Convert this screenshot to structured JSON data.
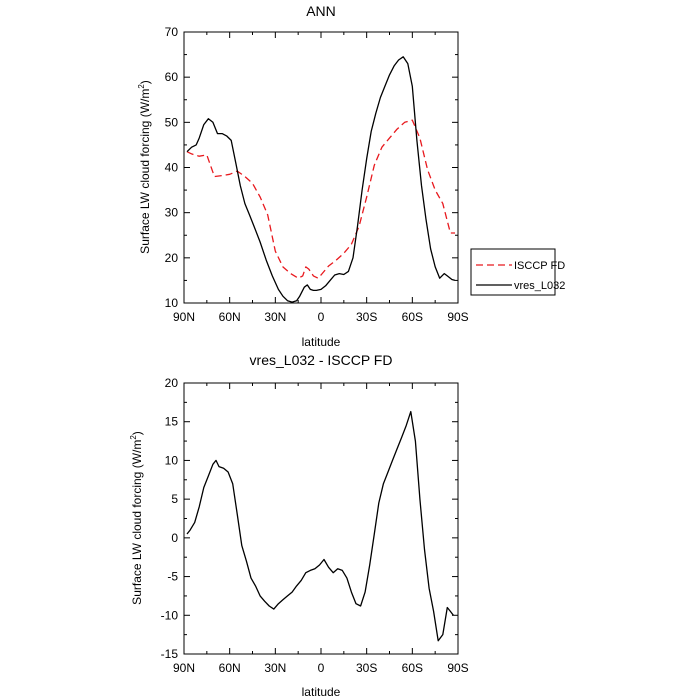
{
  "chart_data": [
    {
      "type": "line",
      "title": "ANN",
      "xlabel": "latitude",
      "ylabel": "Surface LW cloud forcing (W/m",
      "ylabel_sup": "2",
      "ylabel_end": ")",
      "xlim": [
        90,
        -90
      ],
      "ylim": [
        10,
        70
      ],
      "x_ticks": [
        90,
        60,
        30,
        0,
        -30,
        -60,
        -90
      ],
      "x_tick_labels": [
        "90N",
        "60N",
        "30N",
        "0",
        "30S",
        "60S",
        "90S"
      ],
      "y_ticks": [
        10,
        20,
        30,
        40,
        50,
        60,
        70
      ],
      "y_tick_labels": [
        "10",
        "20",
        "30",
        "40",
        "50",
        "60",
        "70"
      ],
      "legend_position": "right",
      "series": [
        {
          "name": "ISCCP FD",
          "color": "#e8191e",
          "dash": "dashed",
          "x": [
            88,
            85,
            80,
            75,
            70,
            65,
            60,
            55,
            50,
            45,
            40,
            35,
            30,
            25,
            20,
            15,
            12,
            10,
            8,
            5,
            2,
            0,
            -5,
            -10,
            -15,
            -20,
            -25,
            -30,
            -35,
            -40,
            -45,
            -50,
            -55,
            -60,
            -65,
            -70,
            -75,
            -80,
            -85,
            -88
          ],
          "y": [
            43.5,
            43.0,
            42.5,
            42.8,
            38.0,
            38.2,
            38.5,
            39.2,
            38.0,
            36.5,
            33.5,
            29.5,
            21.5,
            18.0,
            16.5,
            15.5,
            16.0,
            18.0,
            17.5,
            16.0,
            15.5,
            16.2,
            18.2,
            19.5,
            21.0,
            23.0,
            27.0,
            33.5,
            40.5,
            44.5,
            46.5,
            48.5,
            50.0,
            50.5,
            46.5,
            39.5,
            35.0,
            32.0,
            25.5,
            25.5
          ]
        },
        {
          "name": "vres_L032",
          "color": "#000000",
          "dash": "solid",
          "x": [
            88,
            85,
            82,
            80,
            77,
            74,
            71,
            68,
            65,
            62,
            59,
            56,
            53,
            50,
            47,
            44,
            40,
            36,
            32,
            28,
            25,
            22,
            19,
            16,
            14,
            11,
            9,
            7,
            5,
            3,
            0,
            -3,
            -6,
            -9,
            -12,
            -15,
            -18,
            -21,
            -24,
            -27,
            -30,
            -33,
            -36,
            -39,
            -42,
            -45,
            -48,
            -51,
            -54,
            -57,
            -60,
            -63,
            -66,
            -69,
            -72,
            -75,
            -78,
            -81,
            -83,
            -86,
            -88
          ],
          "y": [
            43.5,
            44.5,
            45.0,
            46.5,
            49.5,
            50.8,
            50.0,
            47.5,
            47.5,
            47.0,
            46.0,
            41.0,
            36.0,
            32.0,
            29.5,
            27.0,
            23.5,
            19.5,
            16.0,
            13.0,
            11.5,
            10.5,
            10.2,
            10.5,
            11.5,
            13.5,
            14.0,
            13.0,
            12.8,
            12.8,
            13.0,
            13.8,
            15.0,
            16.2,
            16.5,
            16.3,
            17.0,
            20.0,
            27.0,
            35.0,
            42.0,
            48.0,
            52.0,
            55.5,
            58.0,
            60.5,
            62.5,
            63.8,
            64.5,
            63.0,
            58.0,
            46.0,
            36.0,
            28.5,
            22.0,
            18.0,
            15.5,
            16.5,
            16.0,
            15.2,
            15.0
          ]
        }
      ]
    },
    {
      "type": "line",
      "title": "vres_L032 - ISCCP FD",
      "xlabel": "latitude",
      "ylabel": "Surface LW cloud forcing (W/m",
      "ylabel_sup": "2",
      "ylabel_end": ")",
      "xlim": [
        90,
        -90
      ],
      "ylim": [
        -15,
        20
      ],
      "x_ticks": [
        90,
        60,
        30,
        0,
        -30,
        -60,
        -90
      ],
      "x_tick_labels": [
        "90N",
        "60N",
        "30N",
        "0",
        "30S",
        "60S",
        "90S"
      ],
      "y_ticks": [
        -15,
        -10,
        -5,
        0,
        5,
        10,
        15,
        20
      ],
      "y_tick_labels": [
        "-15",
        "-10",
        "-5",
        "0",
        "5",
        "10",
        "15",
        "20"
      ],
      "series": [
        {
          "name": "vres_L032 - ISCCP FD",
          "color": "#000000",
          "dash": "solid",
          "x": [
            88,
            86,
            83,
            80,
            77,
            74,
            71,
            69,
            67,
            64,
            61,
            58,
            55,
            52,
            49,
            46,
            43,
            40,
            37,
            34,
            31,
            28,
            25,
            22,
            19,
            16,
            13,
            10,
            7,
            4,
            1,
            -2,
            -5,
            -8,
            -11,
            -14,
            -17,
            -20,
            -23,
            -26,
            -29,
            -32,
            -35,
            -38,
            -41,
            -44,
            -47,
            -50,
            -53,
            -56,
            -59,
            -62,
            -65,
            -68,
            -71,
            -74,
            -77,
            -80,
            -83,
            -85,
            -87
          ],
          "y": [
            0.5,
            1.0,
            2.0,
            4.0,
            6.5,
            8.0,
            9.5,
            10.0,
            9.2,
            9.0,
            8.5,
            7.0,
            3.0,
            -1.0,
            -3.0,
            -5.2,
            -6.2,
            -7.5,
            -8.2,
            -8.8,
            -9.2,
            -8.5,
            -8.0,
            -7.5,
            -7.0,
            -6.2,
            -5.5,
            -4.5,
            -4.2,
            -4.0,
            -3.5,
            -2.8,
            -3.8,
            -4.5,
            -4.0,
            -4.2,
            -5.2,
            -7.0,
            -8.5,
            -8.8,
            -7.0,
            -3.5,
            0.5,
            4.5,
            7.0,
            8.5,
            10.0,
            11.5,
            13.0,
            14.5,
            16.3,
            12.5,
            5.0,
            -1.5,
            -6.5,
            -9.5,
            -13.3,
            -12.5,
            -9.0,
            -9.5,
            -10.0
          ]
        }
      ]
    }
  ]
}
